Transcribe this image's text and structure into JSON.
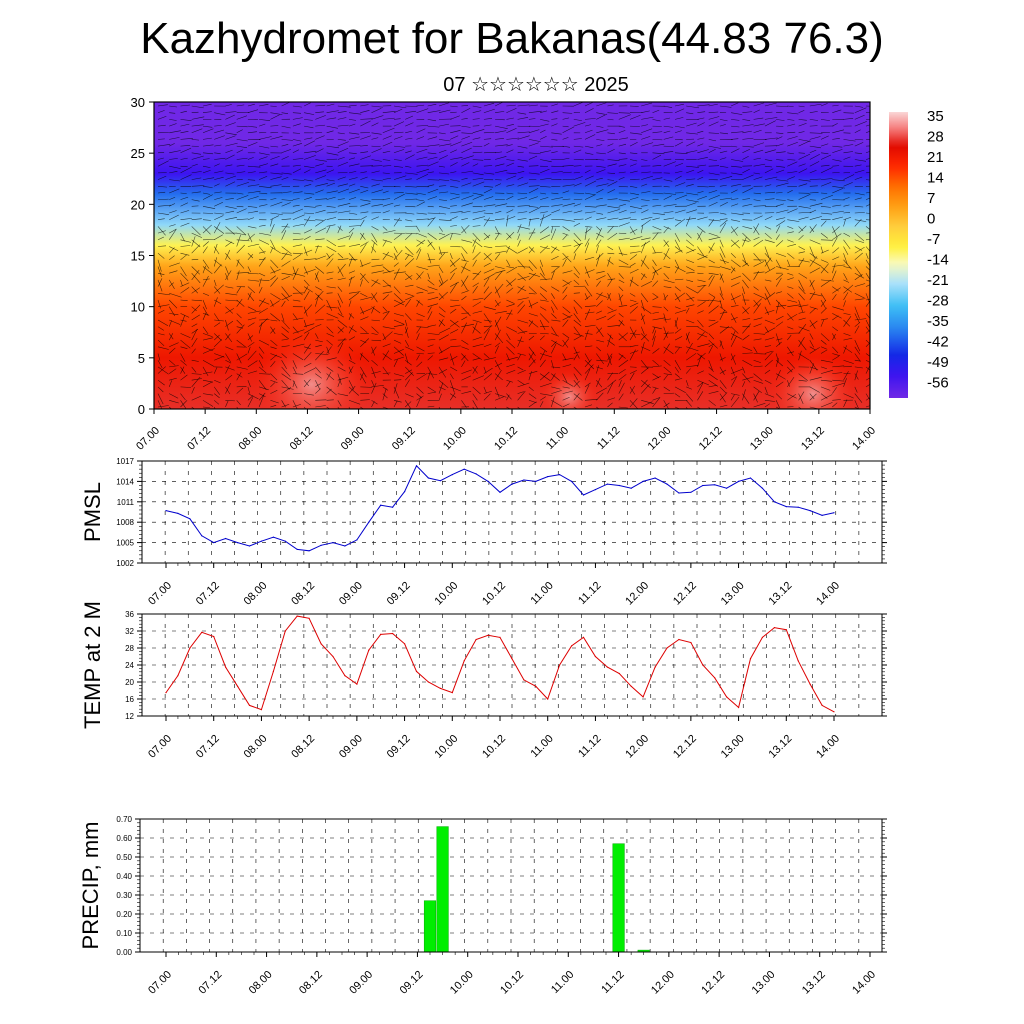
{
  "title": "Kazhydromet for Bakanas(44.83 76.3)",
  "subtitle": "07 ☆☆☆☆☆☆ 2025",
  "time_labels": [
    "07.00",
    "07.12",
    "08.00",
    "08.12",
    "09.00",
    "09.12",
    "10.00",
    "10.12",
    "11.00",
    "11.12",
    "12.00",
    "12.12",
    "13.00",
    "13.12",
    "14.00"
  ],
  "colors": {
    "pmsl_line": "#0000cc",
    "temp_line": "#dd0000",
    "precip_bar": "#00ee00",
    "precip_bar_edge": "#00aa00",
    "grid": "#000000"
  },
  "chart_data": [
    {
      "type": "heatmap",
      "name": "upper-air-section",
      "x_tick_labels": [
        "07.00",
        "07.12",
        "08.00",
        "08.12",
        "09.00",
        "09.12",
        "10.00",
        "10.12",
        "11.00",
        "11.12",
        "12.00",
        "12.12",
        "13.00",
        "13.12",
        "14.00"
      ],
      "y_tick_labels": [
        "0",
        "5",
        "10",
        "15",
        "20",
        "25",
        "30"
      ],
      "ylim": [
        0,
        30
      ],
      "colorbar_labels": [
        "35",
        "28",
        "21",
        "14",
        "7",
        "0",
        "-7",
        "-14",
        "-21",
        "-28",
        "-35",
        "-42",
        "-49",
        "-56"
      ],
      "colorbar_range": [
        -60,
        40
      ],
      "temperature_profile": [
        {
          "level": 0,
          "value": 30
        },
        {
          "level": 5,
          "value": 25
        },
        {
          "level": 10,
          "value": 18
        },
        {
          "level": 14,
          "value": 6
        },
        {
          "level": 16,
          "value": -8
        },
        {
          "level": 18,
          "value": -22
        },
        {
          "level": 21,
          "value": -38
        },
        {
          "level": 23,
          "value": -52
        },
        {
          "level": 26,
          "value": -60
        },
        {
          "level": 30,
          "value": -60
        }
      ],
      "wind_vectors": true
    },
    {
      "type": "line",
      "name": "pmsl",
      "ylabel": "PMSL",
      "ylim": [
        1002,
        1017
      ],
      "y_tick_labels": [
        "1002",
        "1005",
        "1008",
        "1011",
        "1014",
        "1017"
      ],
      "x_tick_labels": [
        "07.00",
        "07.12",
        "08.00",
        "08.12",
        "09.00",
        "09.12",
        "10.00",
        "10.12",
        "11.00",
        "11.12",
        "12.00",
        "12.12",
        "13.00",
        "13.12",
        "14.00"
      ],
      "step_hours": 3,
      "values": [
        1009.7,
        1009.3,
        1008.5,
        1006.0,
        1005.0,
        1005.6,
        1005.0,
        1004.5,
        1005.2,
        1005.8,
        1005.2,
        1004.0,
        1003.8,
        1004.6,
        1005.0,
        1004.5,
        1005.4,
        1008.0,
        1010.5,
        1010.2,
        1012.5,
        1016.3,
        1014.5,
        1014.1,
        1015.0,
        1015.8,
        1015.1,
        1014.0,
        1012.4,
        1013.6,
        1014.2,
        1014.0,
        1014.7,
        1015.0,
        1014.0,
        1012.0,
        1012.8,
        1013.6,
        1013.4,
        1013.0,
        1014.0,
        1014.5,
        1013.6,
        1012.3,
        1012.4,
        1013.4,
        1013.5,
        1013.0,
        1014.0,
        1014.5,
        1013.0,
        1011.0,
        1010.3,
        1010.2,
        1009.7,
        1009.0,
        1009.4
      ]
    },
    {
      "type": "line",
      "name": "temp-2m",
      "ylabel": "TEMP at 2 M",
      "ylim": [
        12,
        36
      ],
      "y_tick_labels": [
        "12",
        "16",
        "20",
        "24",
        "28",
        "32",
        "36"
      ],
      "x_tick_labels": [
        "07.00",
        "07.12",
        "08.00",
        "08.12",
        "09.00",
        "09.12",
        "10.00",
        "10.12",
        "11.00",
        "11.12",
        "12.00",
        "12.12",
        "13.00",
        "13.12",
        "14.00"
      ],
      "step_hours": 3,
      "values": [
        17.5,
        21.5,
        28.0,
        31.7,
        30.7,
        23.5,
        19.0,
        14.5,
        13.5,
        22.5,
        32.0,
        35.5,
        35.0,
        29.0,
        26.0,
        21.5,
        19.5,
        27.5,
        31.2,
        31.4,
        29.0,
        22.5,
        20.0,
        18.5,
        17.5,
        25.0,
        30.0,
        31.0,
        30.5,
        25.5,
        20.5,
        19.0,
        16.0,
        24.0,
        28.5,
        30.5,
        26.0,
        23.5,
        22.0,
        19.0,
        16.5,
        23.5,
        28.0,
        30.0,
        29.3,
        24.0,
        21.0,
        16.5,
        14.0,
        25.5,
        30.5,
        32.8,
        32.3,
        25.0,
        19.5,
        14.5,
        13.0
      ]
    },
    {
      "type": "bar",
      "name": "precip",
      "ylabel": "PRECIP, mm",
      "ylim": [
        0,
        0.7
      ],
      "y_tick_labels": [
        "0.00",
        "0.10",
        "0.20",
        "0.30",
        "0.40",
        "0.50",
        "0.60",
        "0.70"
      ],
      "x_tick_labels": [
        "07.00",
        "07.12",
        "08.00",
        "08.12",
        "09.00",
        "09.12",
        "10.00",
        "10.12",
        "11.00",
        "11.12",
        "12.00",
        "12.12",
        "13.00",
        "13.12",
        "14.00"
      ],
      "step_hours": 3,
      "values": [
        0,
        0,
        0,
        0,
        0,
        0,
        0,
        0,
        0,
        0,
        0,
        0,
        0,
        0,
        0,
        0,
        0,
        0,
        0,
        0,
        0,
        0.27,
        0.66,
        0,
        0,
        0,
        0,
        0,
        0,
        0,
        0,
        0,
        0,
        0,
        0,
        0,
        0.57,
        0,
        0.01,
        0,
        0,
        0,
        0,
        0,
        0,
        0,
        0,
        0,
        0,
        0,
        0,
        0,
        0,
        0,
        0,
        0,
        0
      ]
    }
  ]
}
